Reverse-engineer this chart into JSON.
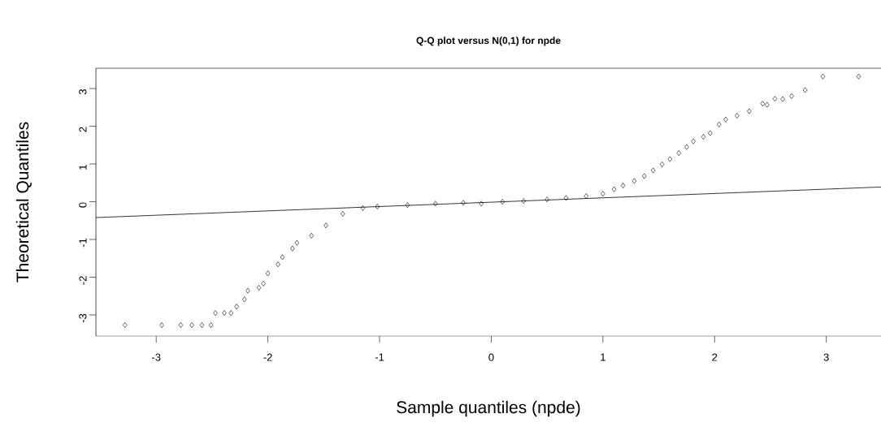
{
  "chart_data": {
    "type": "scatter",
    "title": "Q-Q plot versus N(0,1) for npde",
    "xlabel": "Sample quantiles (npde)",
    "ylabel": "Theoretical Quantiles",
    "xlim": [
      -3.54,
      3.49
    ],
    "ylim": [
      -3.56,
      3.54
    ],
    "xticks": [
      -3,
      -2,
      -1,
      0,
      1,
      2,
      3
    ],
    "yticks": [
      -3,
      -2,
      -1,
      0,
      1,
      2,
      3
    ],
    "series": [
      {
        "marker": "diamond",
        "color": "#000000",
        "x": [
          -3.28,
          -2.95,
          -2.78,
          -2.68,
          -2.59,
          -2.51,
          -2.47,
          -2.39,
          -2.33,
          -2.28,
          -2.21,
          -2.18,
          -2.08,
          -2.04,
          -2.0,
          -1.91,
          -1.87,
          -1.78,
          -1.74,
          -1.61,
          -1.48,
          -1.33,
          -1.15,
          -1.02,
          -0.75,
          -0.5,
          -0.25,
          -0.09,
          0.1,
          0.29,
          0.5,
          0.67,
          0.85,
          1.0,
          1.1,
          1.18,
          1.28,
          1.37,
          1.45,
          1.53,
          1.6,
          1.68,
          1.75,
          1.81,
          1.9,
          1.96,
          2.04,
          2.1,
          2.2,
          2.31,
          2.43,
          2.47,
          2.54,
          2.61,
          2.69,
          2.81,
          2.97,
          3.29
        ],
        "values": [
          -3.27,
          -3.27,
          -3.27,
          -3.27,
          -3.27,
          -3.27,
          -2.95,
          -2.95,
          -2.95,
          -2.78,
          -2.59,
          -2.36,
          -2.28,
          -2.17,
          -1.9,
          -1.66,
          -1.47,
          -1.24,
          -1.09,
          -0.9,
          -0.63,
          -0.32,
          -0.17,
          -0.13,
          -0.09,
          -0.05,
          -0.03,
          -0.05,
          0.0,
          0.02,
          0.06,
          0.1,
          0.15,
          0.21,
          0.33,
          0.43,
          0.55,
          0.68,
          0.83,
          0.99,
          1.13,
          1.29,
          1.45,
          1.6,
          1.72,
          1.82,
          2.05,
          2.18,
          2.28,
          2.4,
          2.6,
          2.57,
          2.73,
          2.72,
          2.8,
          2.96,
          3.32,
          3.32
        ]
      },
      {
        "type": "line",
        "marker": "none",
        "color": "#000000",
        "x": [
          -3.54,
          3.49
        ],
        "values": [
          -0.42,
          0.39
        ]
      }
    ]
  }
}
